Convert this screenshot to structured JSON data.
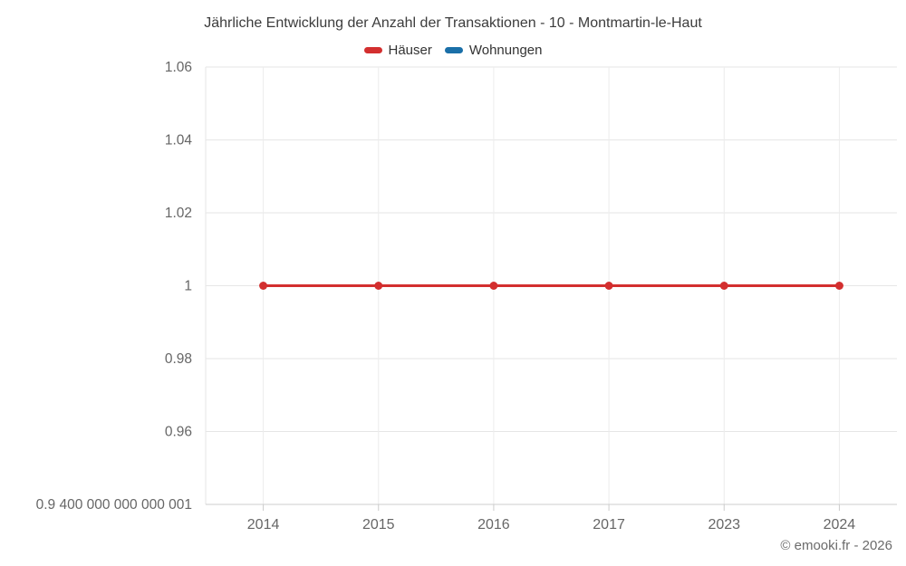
{
  "header": {
    "title": "Jährliche Entwicklung der Anzahl der Transaktionen - 10 - Montmartin-le-Haut"
  },
  "footer": {
    "attribution": "© emooki.fr - 2026"
  },
  "colors": {
    "grid_horizontal": "#e6e6e6",
    "grid_vertical": "#ececec",
    "axis_line": "#cccccc",
    "tick_label": "#666666"
  },
  "chart_data": {
    "type": "line",
    "title": "Jährliche Entwicklung der Anzahl der Transaktionen - 10 - Montmartin-le-Haut",
    "categories": [
      "2014",
      "2015",
      "2016",
      "2017",
      "2023",
      "2024"
    ],
    "series": [
      {
        "name": "Häuser",
        "color": "#d32f2f",
        "values": [
          1,
          1,
          1,
          1,
          1,
          1
        ]
      },
      {
        "name": "Wohnungen",
        "color": "#1a6fa8",
        "values": []
      }
    ],
    "xlabel": "",
    "ylabel": "",
    "ylim": [
      0.94,
      1.06
    ],
    "y_ticks": [
      {
        "value": 1.06,
        "label": "1.06"
      },
      {
        "value": 1.04,
        "label": "1.04"
      },
      {
        "value": 1.02,
        "label": "1.02"
      },
      {
        "value": 1.0,
        "label": "1"
      },
      {
        "value": 0.98,
        "label": "0.98"
      },
      {
        "value": 0.96,
        "label": "0.96"
      },
      {
        "value": 0.94,
        "label": "0.9 400 000 000 000 001"
      }
    ],
    "grid": true,
    "legend_position": "top"
  }
}
